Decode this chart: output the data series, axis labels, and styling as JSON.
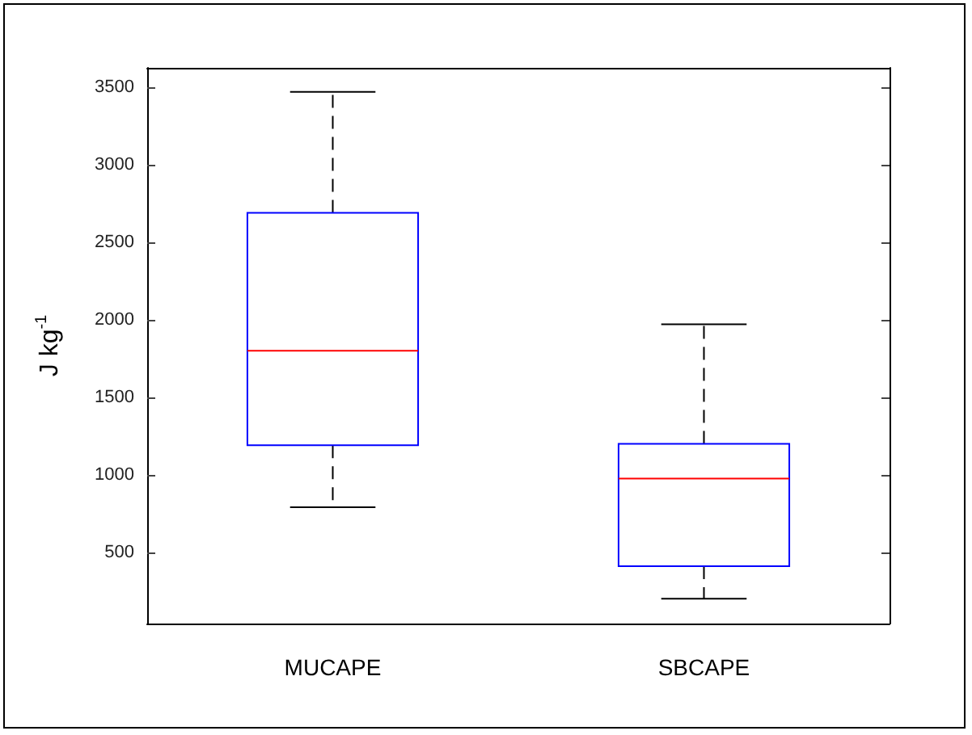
{
  "chart_data": {
    "type": "box",
    "ylabel": "J kg$^{-1}$",
    "categories": [
      "MUCAPE",
      "SBCAPE"
    ],
    "series": [
      {
        "color": "#0000ff",
        "boxes": [
          {
            "low": 790,
            "q1": 1190,
            "median": 1800,
            "q3": 2690,
            "high": 3470
          },
          {
            "low": 200,
            "q1": 410,
            "median": 975,
            "q3": 1200,
            "high": 1970
          }
        ]
      }
    ],
    "ylim": [
      40,
      3625
    ],
    "yticks": [
      500,
      1000,
      1500,
      2000,
      2500,
      3000,
      3500
    ],
    "grid": false,
    "line_style": "dashed"
  }
}
